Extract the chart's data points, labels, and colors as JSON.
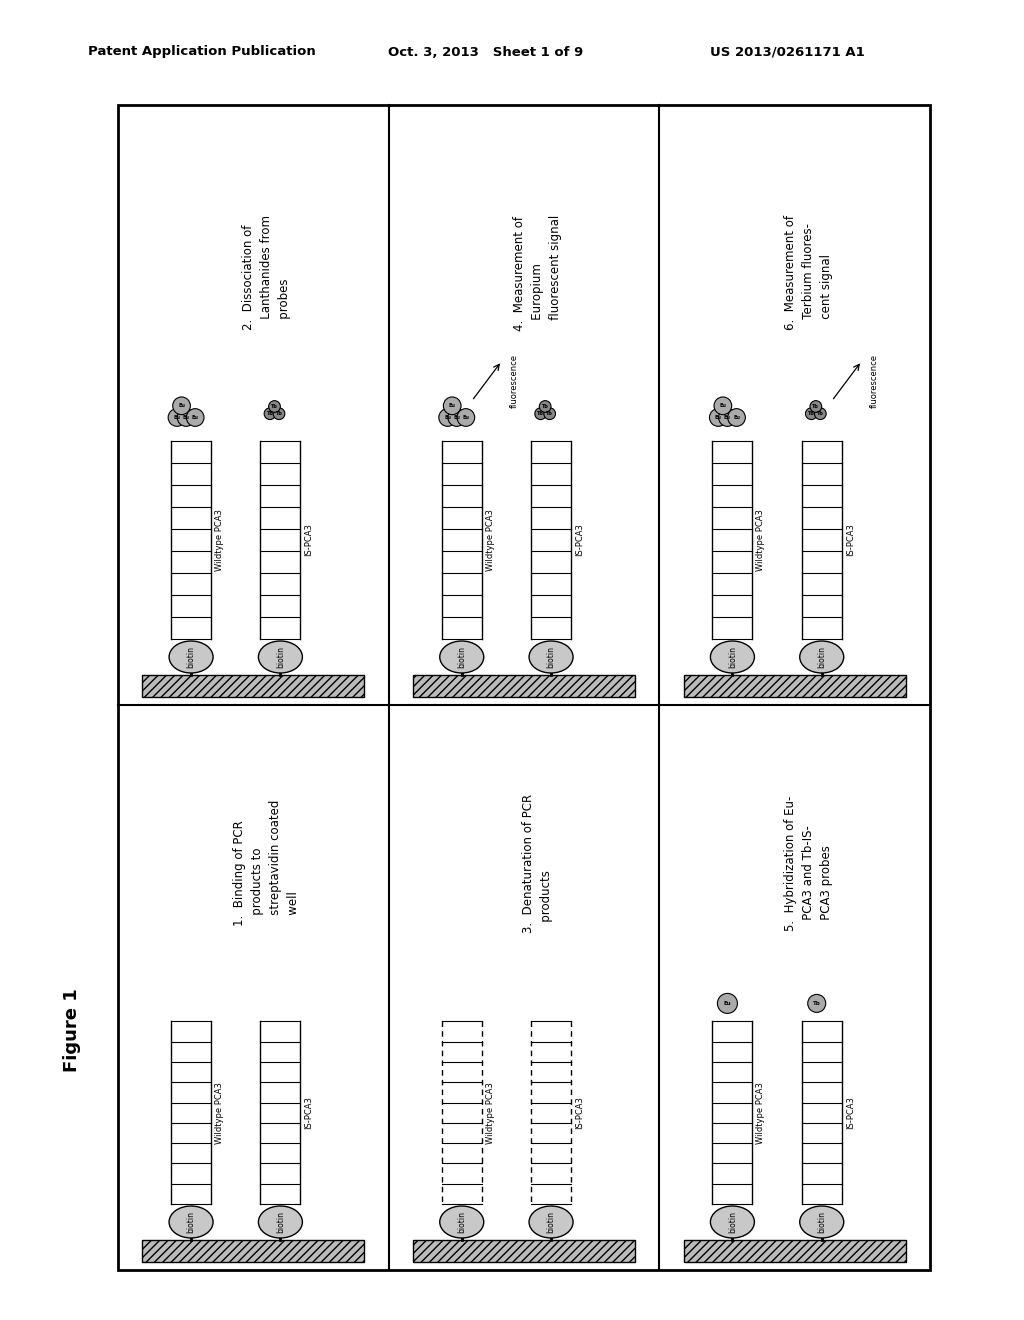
{
  "header_left": "Patent Application Publication",
  "header_mid": "Oct. 3, 2013   Sheet 1 of 9",
  "header_right": "US 2013/0261171 A1",
  "figure_label": "Figure 1",
  "top_panels": [
    {
      "number": "2.",
      "lines": [
        "Dissociation of",
        "Lanthanides from",
        "probes"
      ],
      "eu_cluster": true,
      "tb_cluster": true,
      "eu_big": true,
      "tb_big": false,
      "fluorescence_arrow": false,
      "denatured": false
    },
    {
      "number": "4.",
      "lines": [
        "Measurement of",
        "Europium",
        "fluorescent signal"
      ],
      "eu_cluster": true,
      "tb_cluster": true,
      "eu_big": true,
      "tb_big": false,
      "fluorescence_arrow": true,
      "fluorescence_on_left": true,
      "denatured": false
    },
    {
      "number": "6.",
      "lines": [
        "Measurement of",
        "Terbium fluores-",
        "cent signal"
      ],
      "eu_cluster": true,
      "tb_cluster": true,
      "eu_big": true,
      "tb_big": false,
      "fluorescence_arrow": true,
      "fluorescence_on_left": false,
      "denatured": false
    }
  ],
  "bottom_panels": [
    {
      "number": "1.",
      "lines": [
        "Binding of PCR",
        "products to",
        "streptavidin coated",
        "well"
      ],
      "eu_cluster": false,
      "tb_cluster": false,
      "fluorescence_arrow": false,
      "denatured": false
    },
    {
      "number": "3.",
      "lines": [
        "Denaturation of PCR",
        "products"
      ],
      "eu_cluster": false,
      "tb_cluster": false,
      "fluorescence_arrow": false,
      "denatured": true
    },
    {
      "number": "5.",
      "lines": [
        "Hybridization of Eu-",
        "PCA3 and Tb-IS-",
        "PCA3 probes"
      ],
      "eu_cluster": false,
      "tb_cluster": false,
      "eu_single": true,
      "tb_single": true,
      "fluorescence_arrow": false,
      "denatured": false
    }
  ]
}
